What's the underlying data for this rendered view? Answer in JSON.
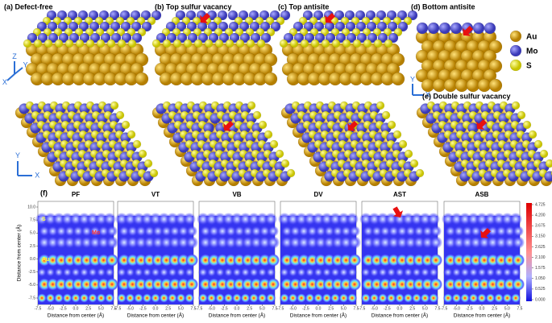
{
  "structure_labels": [
    "(a) Defect-free",
    "(b) Top sulfur vacancy",
    "(c) Top antisite",
    "(d) Bottom antisite",
    "(e) Double sulfur vacancy"
  ],
  "legend": {
    "items": [
      "Au",
      "Mo",
      "S"
    ]
  },
  "axis_letters": {
    "side": [
      "Z",
      "Y",
      "X"
    ],
    "top": [
      "Y",
      "X"
    ]
  },
  "charge_density": {
    "label": "(f)",
    "titles": [
      "PF",
      "VT",
      "VB",
      "DV",
      "AST",
      "ASB"
    ],
    "y_label": "Distance from center (Å)",
    "x_label": "Distance from center (Å)",
    "xticks": [
      -7.5,
      {
        "value": -5,
        "label": "-5.0"
      },
      -2.5,
      {
        "value": 0,
        "label": "0.0"
      },
      2.5,
      {
        "value": 5,
        "label": "5.0"
      },
      7.5
    ],
    "yticks": [
      {
        "value": 10,
        "label": "10.0"
      },
      7.5,
      {
        "value": 5,
        "label": "5.0"
      },
      2.5,
      {
        "value": 0,
        "label": "0.0"
      },
      -2.5,
      {
        "value": -5,
        "label": "-5.0"
      },
      -7.5
    ],
    "annotations": [
      "S",
      "Mo",
      "Au"
    ],
    "colorbar_ticks": [
      4.725,
      {
        "value": 4.2,
        "label": "4.200"
      },
      3.675,
      {
        "value": 3.15,
        "label": "3.150"
      },
      2.625,
      {
        "value": 2.1,
        "label": "2.100"
      },
      1.575,
      {
        "value": 1.05,
        "label": "1.050"
      },
      0.525,
      {
        "value": 0,
        "label": "0.000"
      }
    ]
  }
}
